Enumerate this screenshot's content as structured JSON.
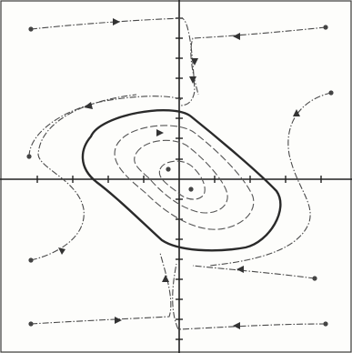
{
  "diagram": {
    "type": "phase-portrait",
    "features": [
      "limit-cycle",
      "spiral-trajectories",
      "axis-ticks"
    ],
    "colors": {
      "ink": "#2a2a2a",
      "paper": "#fdfdfb"
    }
  }
}
